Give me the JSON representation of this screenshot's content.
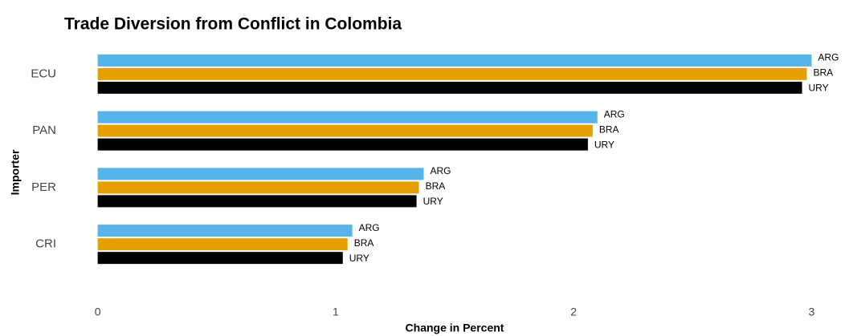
{
  "chart_data": {
    "type": "grouped-barh",
    "title": "Trade Diversion from Conflict in Colombia",
    "x_label": "Change in Percent",
    "y_label": "Importer",
    "categories": [
      "ECU",
      "PAN",
      "PER",
      "CRI"
    ],
    "series": [
      {
        "name": "ARG",
        "color": "#56b4e9",
        "values": [
          3.0,
          2.1,
          1.37,
          1.07
        ]
      },
      {
        "name": "BRA",
        "color": "#e69f00",
        "values": [
          2.98,
          2.08,
          1.35,
          1.05
        ]
      },
      {
        "name": "URY",
        "color": "#000000",
        "values": [
          2.96,
          2.06,
          1.34,
          1.03
        ]
      }
    ],
    "xlim": [
      -0.1,
      3.1
    ],
    "xticks": [
      0,
      1,
      2,
      3
    ],
    "grid": false
  }
}
